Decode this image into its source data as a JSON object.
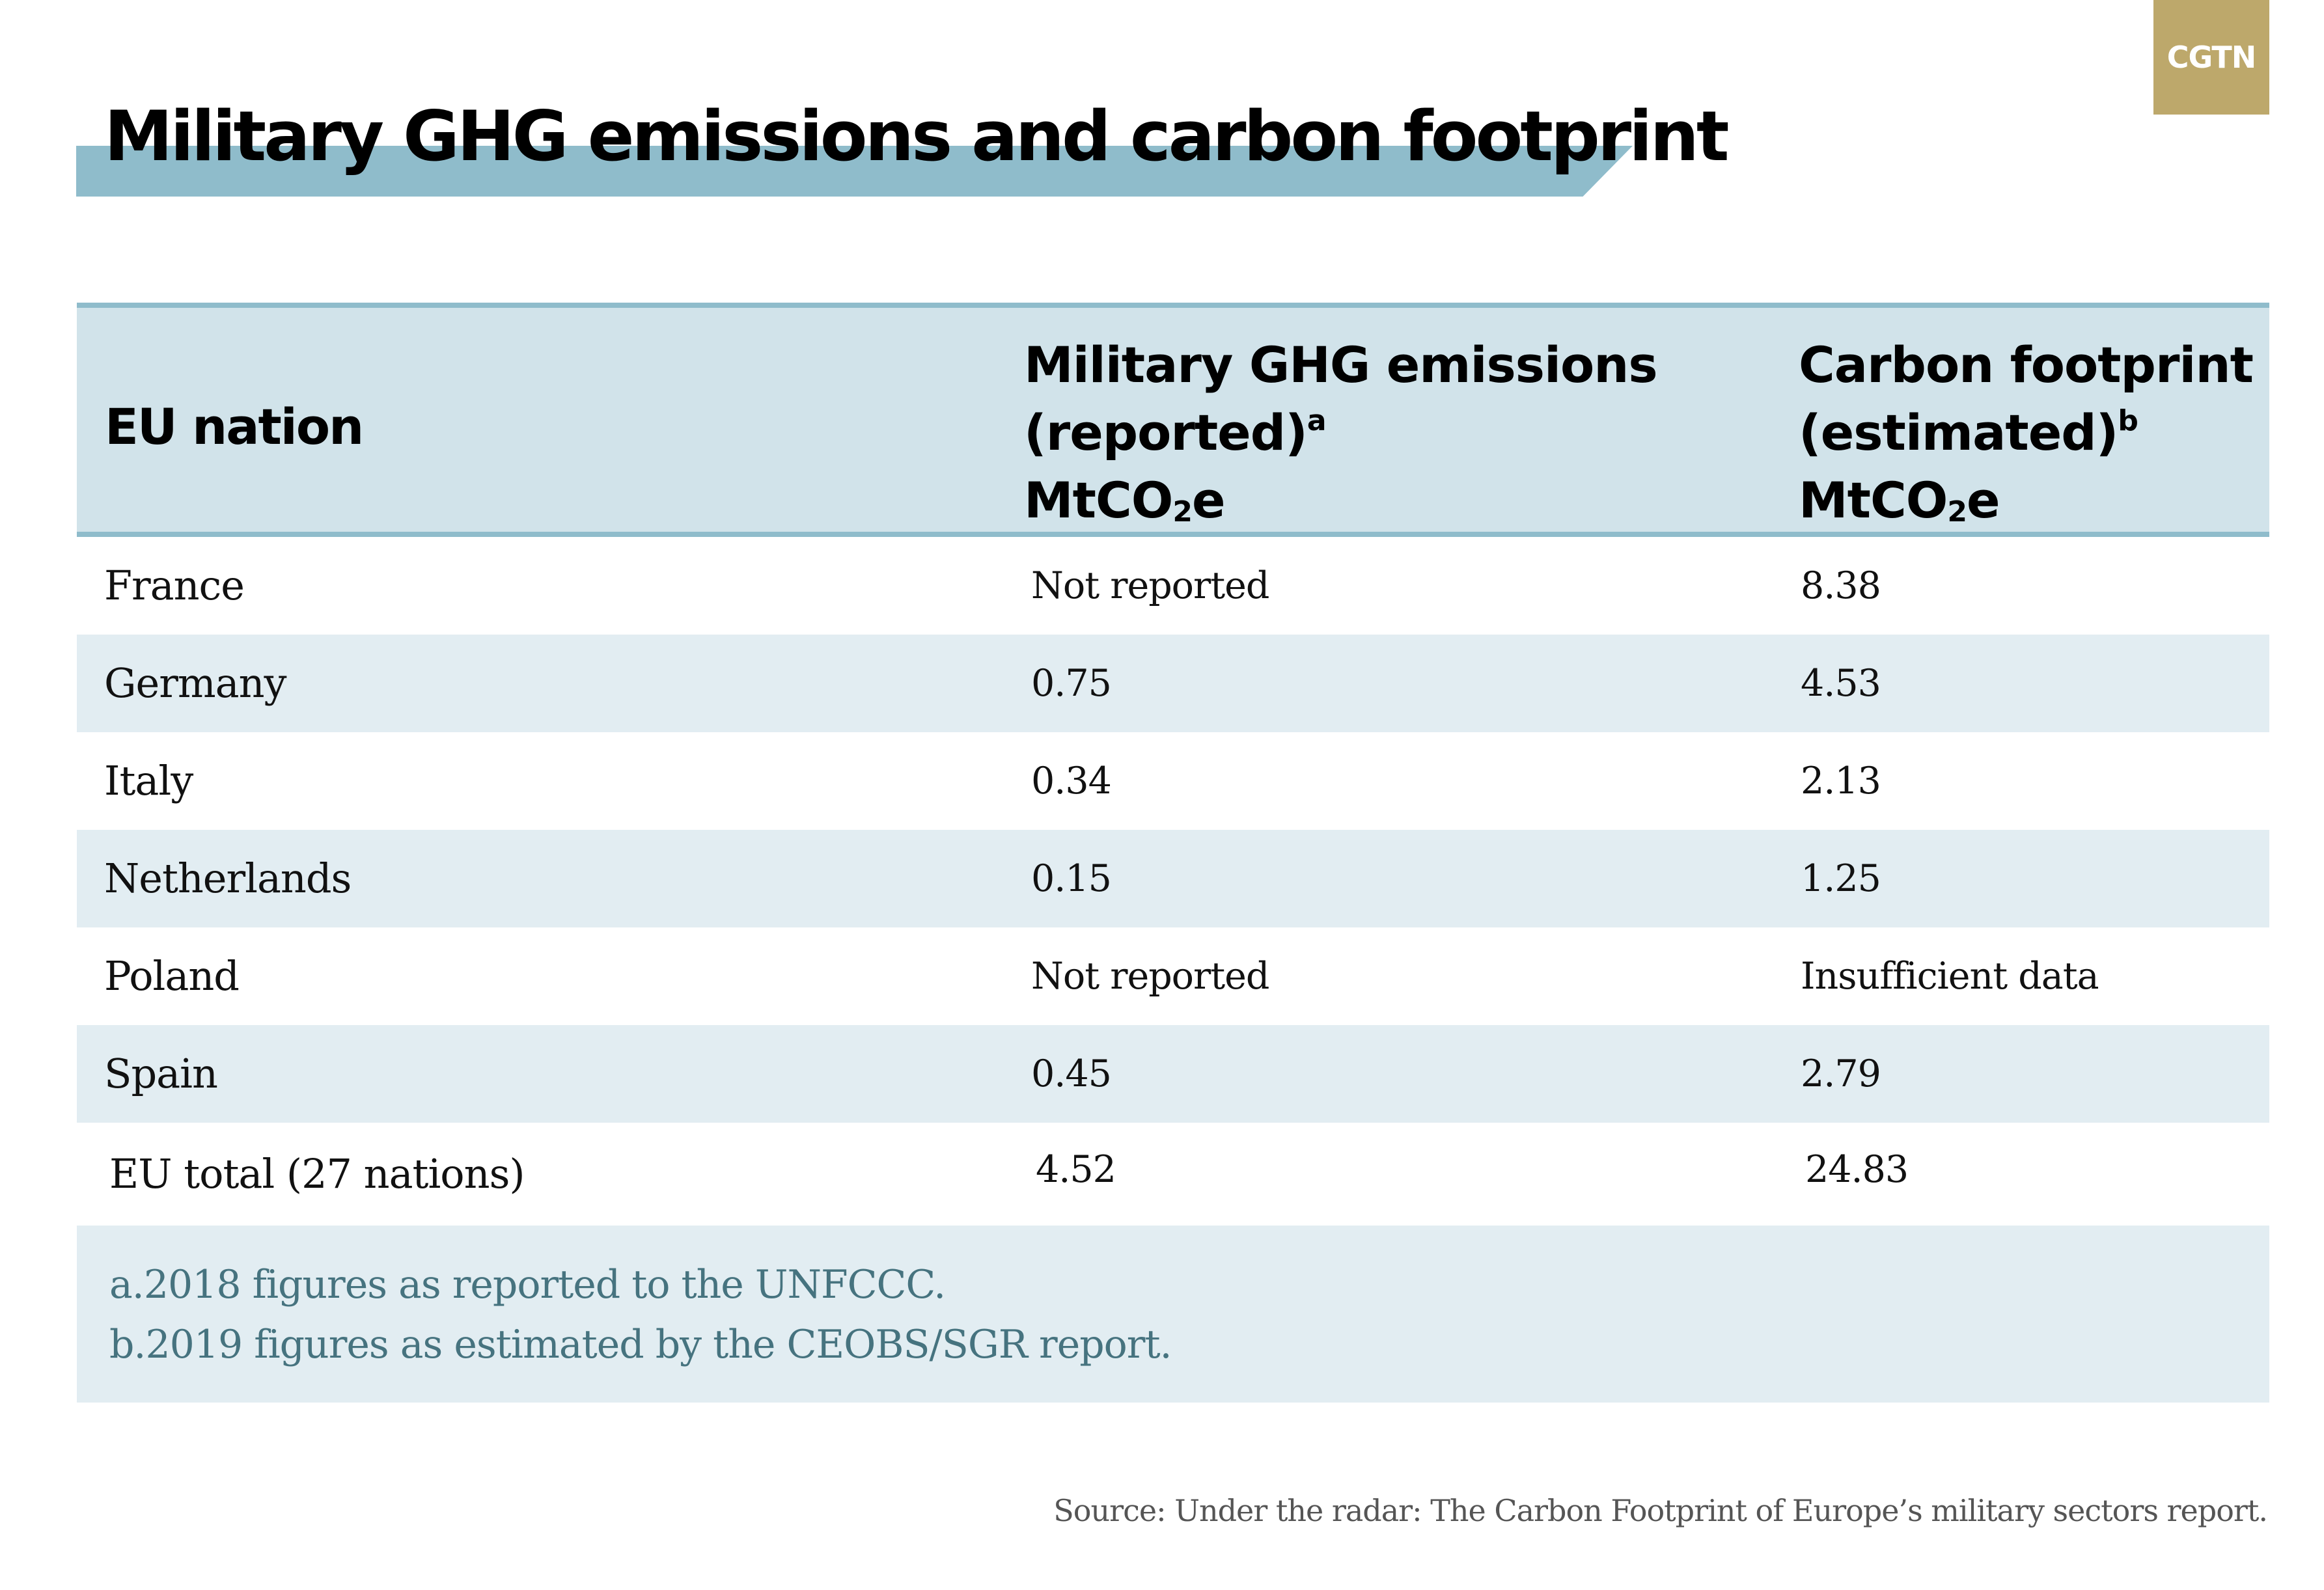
{
  "logo": {
    "text": "CGTN"
  },
  "title": "Military GHG emissions and carbon footprint",
  "table": {
    "headers": {
      "nation": "EU nation",
      "col1": {
        "line1": "Military GHG emissions",
        "line2": "(reported)",
        "marker": "a",
        "unit_main": "MtCO",
        "unit_sub": "2",
        "unit_end": "e"
      },
      "col2": {
        "line1": "Carbon footprint",
        "line2": "(estimated)",
        "marker": "b",
        "unit_main": "MtCO",
        "unit_sub": "2",
        "unit_end": "e"
      }
    },
    "rows": [
      {
        "nation": "France",
        "reported": "Not reported",
        "estimated": "8.38"
      },
      {
        "nation": "Germany",
        "reported": "0.75",
        "estimated": "4.53"
      },
      {
        "nation": "Italy",
        "reported": "0.34",
        "estimated": "2.13"
      },
      {
        "nation": "Netherlands",
        "reported": "0.15",
        "estimated": "1.25"
      },
      {
        "nation": "Poland",
        "reported": "Not reported",
        "estimated": "Insufficient data"
      },
      {
        "nation": "Spain",
        "reported": "0.45",
        "estimated": "2.79"
      }
    ],
    "total": {
      "nation": "EU total (27 nations)",
      "reported": "4.52",
      "estimated": "24.83"
    }
  },
  "notes": [
    "a.2018 figures as reported to the UNFCCC.",
    "b.2019 figures as estimated by the CEOBS/SGR report."
  ],
  "source": "Source: Under the radar: The Carbon Footprint of Europe’s military sectors report.",
  "colors": {
    "accent_band": "#8fbccb",
    "header_bg": "#d1e3ea",
    "row_alt_bg": "#e2edf2",
    "logo_bg": "#bda86b",
    "notes_text": "#46737f"
  }
}
